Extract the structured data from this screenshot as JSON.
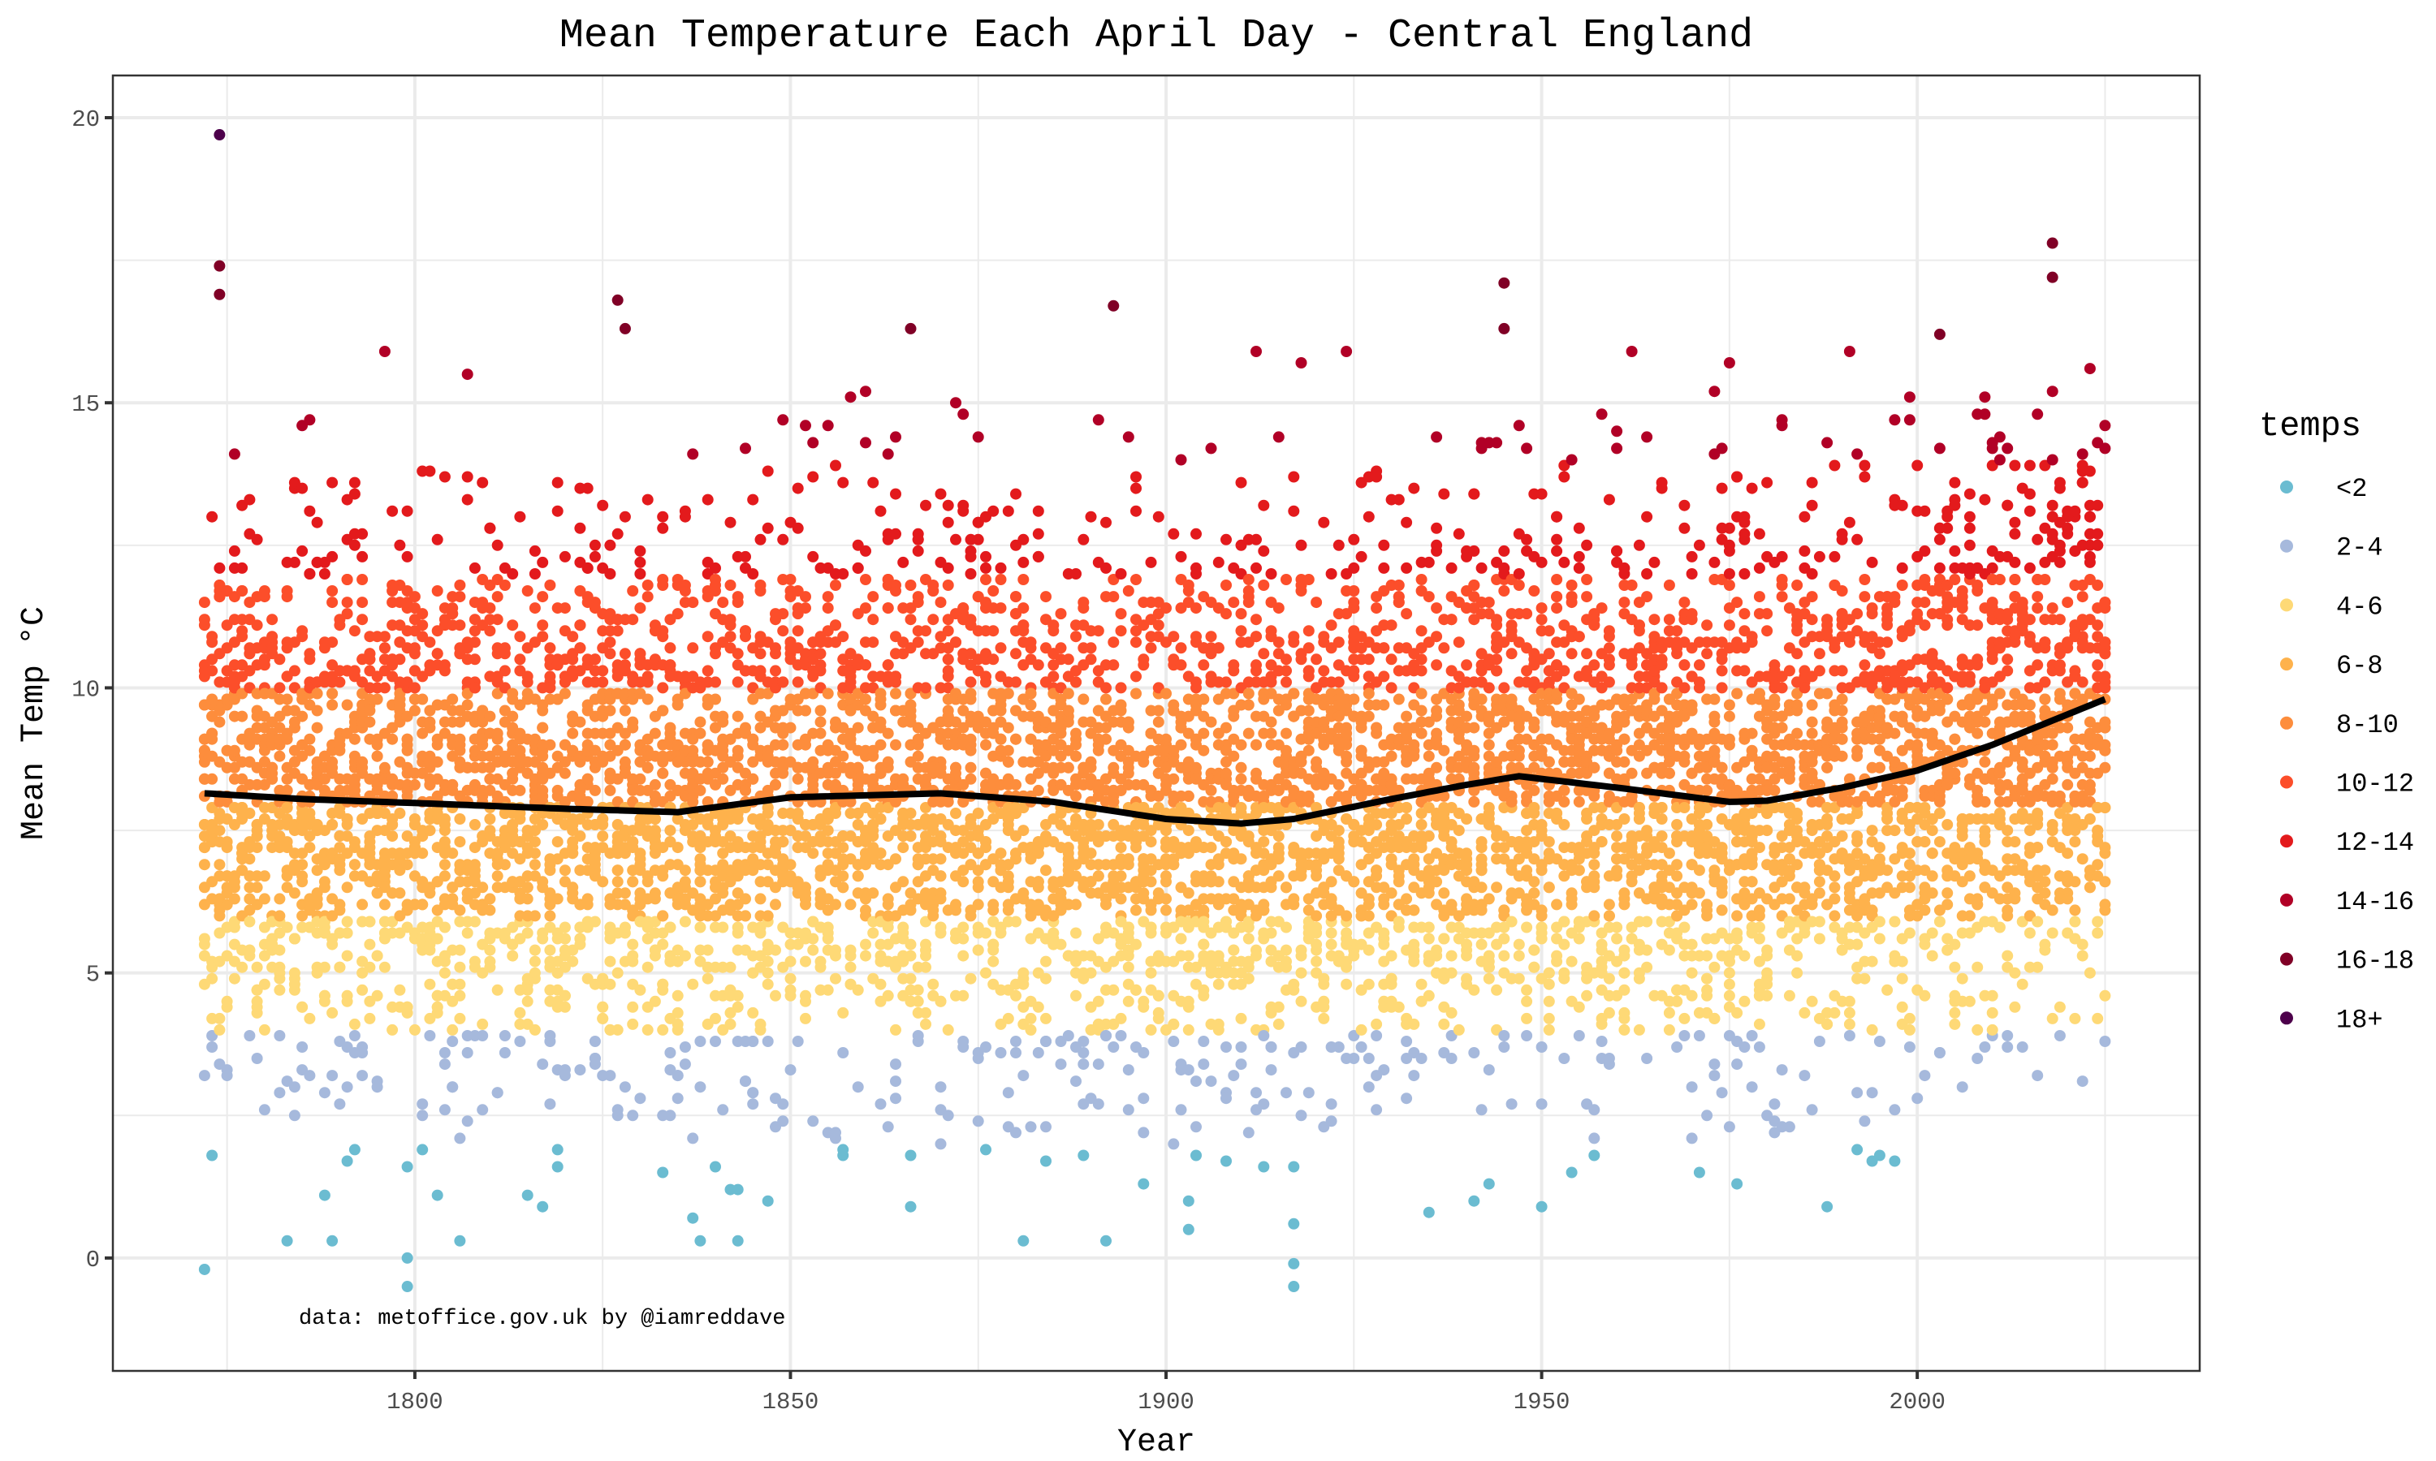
{
  "chart_data": {
    "type": "scatter",
    "title": "Mean Temperature Each April Day - Central England",
    "xlabel": "Year",
    "ylabel": "Mean Temp °C",
    "xlim": [
      1759.8,
      2037.6
    ],
    "ylim": [
      -1.98,
      20.74
    ],
    "x_ticks": [
      "1800",
      "1850",
      "1900",
      "1950",
      "2000"
    ],
    "y_ticks": [
      "0",
      "5",
      "10",
      "15",
      "20"
    ],
    "grid": true,
    "annotation": "data: metoffice.gov.uk by @iamreddave",
    "x_range_of_data": [
      1772,
      2025
    ],
    "points_per_year": 30,
    "legend": {
      "title": "temps",
      "placement": "right",
      "bins": [
        {
          "label": "<2",
          "min": -99,
          "max": 2,
          "color": "#6bbcd1"
        },
        {
          "label": "2-4",
          "min": 2,
          "max": 4,
          "color": "#a6b9dc"
        },
        {
          "label": "4-6",
          "min": 4,
          "max": 6,
          "color": "#fed976"
        },
        {
          "label": "6-8",
          "min": 6,
          "max": 8,
          "color": "#feb24c"
        },
        {
          "label": "8-10",
          "min": 8,
          "max": 10,
          "color": "#fd8d3c"
        },
        {
          "label": "10-12",
          "min": 10,
          "max": 12,
          "color": "#fc4e2a"
        },
        {
          "label": "12-14",
          "min": 12,
          "max": 14,
          "color": "#e31a1c"
        },
        {
          "label": "14-16",
          "min": 14,
          "max": 16,
          "color": "#b10026"
        },
        {
          "label": "16-18",
          "min": 16,
          "max": 18,
          "color": "#800026"
        },
        {
          "label": "18+",
          "min": 18,
          "max": 99,
          "color": "#4d004b"
        }
      ]
    },
    "smooth": {
      "color": "#000000",
      "x": [
        1772,
        1785,
        1800,
        1820,
        1835,
        1850,
        1870,
        1885,
        1900,
        1910,
        1917,
        1930,
        1940,
        1947,
        1960,
        1975,
        1980,
        1990,
        2000,
        2010,
        2025
      ],
      "y": [
        8.15,
        8.05,
        7.98,
        7.88,
        7.82,
        8.08,
        8.15,
        8.0,
        7.7,
        7.62,
        7.7,
        8.05,
        8.3,
        8.45,
        8.25,
        8.0,
        8.02,
        8.25,
        8.55,
        9.0,
        9.8
      ]
    },
    "notable_points": [
      {
        "x": 1774,
        "y": 19.7
      },
      {
        "x": 1774,
        "y": 17.4
      },
      {
        "x": 1774,
        "y": 16.9
      },
      {
        "x": 1772,
        "y": -0.2
      },
      {
        "x": 1799,
        "y": -0.5
      },
      {
        "x": 1799,
        "y": 0.0
      },
      {
        "x": 1917,
        "y": -0.5
      },
      {
        "x": 1917,
        "y": -0.1
      },
      {
        "x": 2018,
        "y": 17.8
      },
      {
        "x": 2018,
        "y": 17.2
      },
      {
        "x": 1945,
        "y": 17.1
      },
      {
        "x": 1827,
        "y": 16.8
      },
      {
        "x": 1893,
        "y": 16.7
      },
      {
        "x": 1866,
        "y": 16.3
      },
      {
        "x": 2003,
        "y": 16.2
      },
      {
        "x": 1828,
        "y": 16.3
      },
      {
        "x": 1945,
        "y": 16.3
      }
    ]
  }
}
